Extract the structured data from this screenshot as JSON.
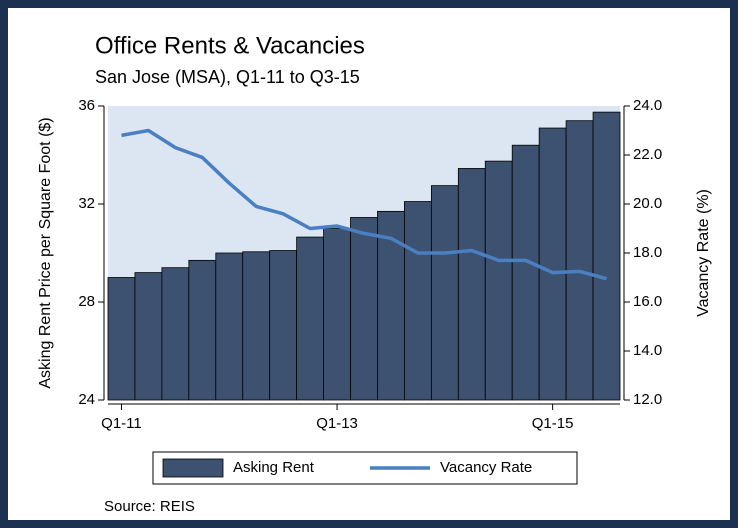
{
  "chart_data": {
    "type": "bar_line",
    "title": "Office Rents & Vacancies",
    "subtitle": "San Jose (MSA), Q1-11 to Q3-15",
    "ylabel": "Asking Rent Price per Square Foot ($)",
    "y2label": "Vacancy Rate (%)",
    "source": "Source: REIS",
    "categories": [
      "Q1-11",
      null,
      null,
      null,
      null,
      null,
      null,
      null,
      "Q1-13",
      null,
      null,
      null,
      null,
      null,
      null,
      null,
      "Q1-15",
      null,
      null
    ],
    "series": [
      {
        "name": "Asking Rent",
        "color": "#3d5170",
        "type": "bar",
        "values": [
          29.0,
          29.2,
          29.4,
          29.7,
          30.0,
          30.05,
          30.1,
          30.65,
          31.0,
          31.45,
          31.7,
          32.1,
          32.75,
          33.45,
          33.75,
          34.4,
          35.1,
          35.4,
          35.75
        ]
      },
      {
        "name": "Vacancy Rate",
        "color": "#4a7fc1",
        "type": "line",
        "axis": "y2",
        "values": [
          22.8,
          23.0,
          22.3,
          21.9,
          20.85,
          19.9,
          19.6,
          19.0,
          19.1,
          18.8,
          18.6,
          18.0,
          18.0,
          18.1,
          17.7,
          17.7,
          17.2,
          17.25,
          16.95
        ]
      }
    ],
    "ylim": [
      24,
      36
    ],
    "yticks": [
      24,
      28,
      32,
      36
    ],
    "y2lim": [
      12,
      24
    ],
    "y2ticks": [
      {
        "value": 12,
        "label": "12.0"
      },
      {
        "value": 14,
        "label": "14.0"
      },
      {
        "value": 16,
        "label": "16.0"
      },
      {
        "value": 18,
        "label": "18.0"
      },
      {
        "value": 20,
        "label": "20.0"
      },
      {
        "value": 22,
        "label": "22.0"
      },
      {
        "value": 24,
        "label": "24.0"
      }
    ]
  }
}
